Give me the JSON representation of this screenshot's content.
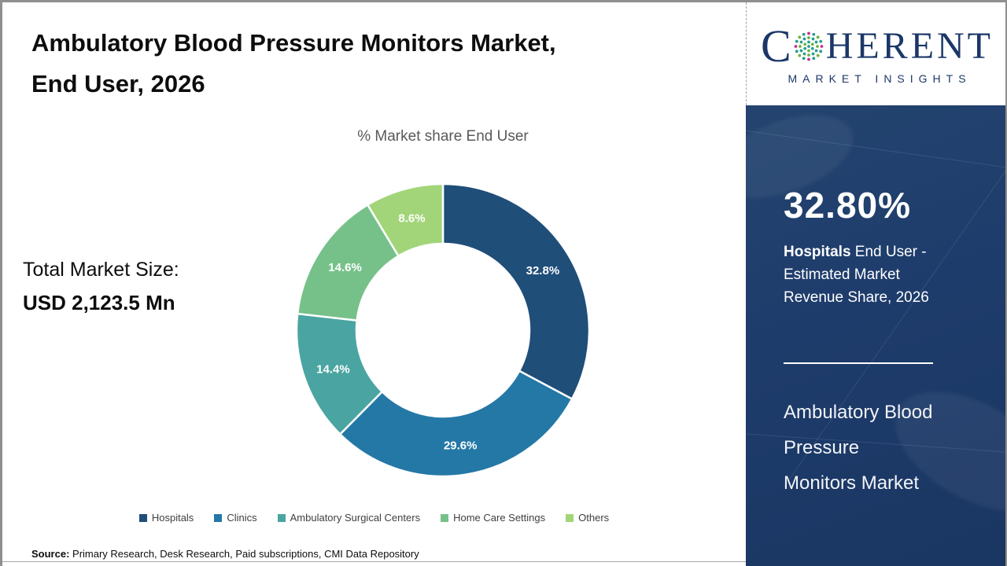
{
  "header": {
    "title_line1": "Ambulatory Blood Pressure Monitors Market,",
    "title_line2": "End User, 2026"
  },
  "chart_data": {
    "type": "pie",
    "donut": true,
    "title": "% Market share End User",
    "categories": [
      "Hospitals",
      "Clinics",
      "Ambulatory Surgical Centers",
      "Home Care Settings",
      "Others"
    ],
    "values": [
      32.8,
      29.6,
      14.4,
      14.6,
      8.6
    ],
    "labels": [
      "32.8%",
      "29.6%",
      "14.4%",
      "14.6%",
      "8.6%"
    ],
    "colors": [
      "#1f4e79",
      "#2478a6",
      "#4aa5a2",
      "#76c189",
      "#a2d579"
    ],
    "start_angle_deg": 0,
    "direction": "clockwise",
    "legend_position": "bottom"
  },
  "total_market": {
    "label": "Total Market Size:",
    "value": "USD 2,123.5 Mn"
  },
  "source": {
    "label": "Source:",
    "text": " Primary Research, Desk Research, Paid subscriptions, CMI Data Repository"
  },
  "sidebar": {
    "logo": {
      "brand_c": "C",
      "brand_rest": "HERENT",
      "tagline": "MARKET INSIGHTS"
    },
    "stat": {
      "value": "32.80%",
      "desc_bold": "Hospitals",
      "desc_line1_rest": " End User -",
      "desc_line2": "Estimated Market",
      "desc_line3": "Revenue Share, 2026"
    },
    "market_name_lines": [
      "Ambulatory Blood",
      "Pressure",
      "Monitors Market"
    ],
    "colors": {
      "sidebar_navy": "#1e3c6b",
      "logo_navy": "#1b3768",
      "globe_teal": "#2a9d8f",
      "globe_green": "#6db33f",
      "globe_magenta": "#c72b8e"
    }
  }
}
